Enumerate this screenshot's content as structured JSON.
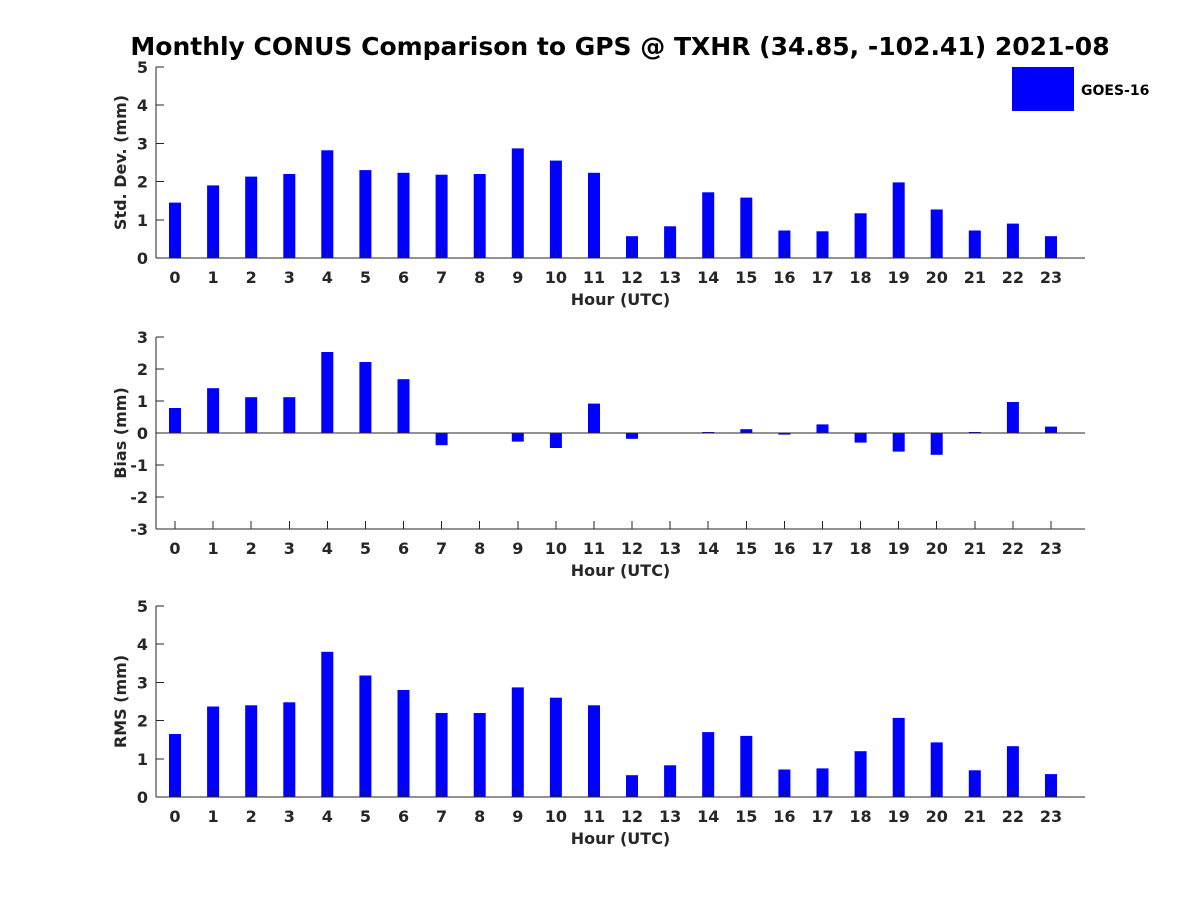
{
  "title": "Monthly CONUS Comparison to GPS @ TXHR (34.85, -102.41) 2021-08",
  "legend": {
    "label": "GOES-16",
    "color": "#0000ff"
  },
  "chart_data": [
    {
      "type": "bar",
      "xlabel": "Hour (UTC)",
      "ylabel": "Std. Dev. (mm)",
      "categories": [
        "0",
        "1",
        "2",
        "3",
        "4",
        "5",
        "6",
        "7",
        "8",
        "9",
        "10",
        "11",
        "12",
        "13",
        "14",
        "15",
        "16",
        "17",
        "18",
        "19",
        "20",
        "21",
        "22",
        "23"
      ],
      "ylim": [
        0,
        5
      ],
      "yticks": [
        "0",
        "1",
        "2",
        "3",
        "4",
        "5"
      ],
      "series": [
        {
          "name": "GOES-16",
          "values": [
            1.45,
            1.9,
            2.13,
            2.2,
            2.82,
            2.3,
            2.23,
            2.18,
            2.2,
            2.87,
            2.55,
            2.23,
            0.57,
            0.83,
            1.72,
            1.58,
            0.72,
            0.7,
            1.17,
            1.98,
            1.27,
            0.72,
            0.9,
            0.57
          ]
        }
      ]
    },
    {
      "type": "bar",
      "xlabel": "Hour (UTC)",
      "ylabel": "Bias (mm)",
      "categories": [
        "0",
        "1",
        "2",
        "3",
        "4",
        "5",
        "6",
        "7",
        "8",
        "9",
        "10",
        "11",
        "12",
        "13",
        "14",
        "15",
        "16",
        "17",
        "18",
        "19",
        "20",
        "21",
        "22",
        "23"
      ],
      "ylim": [
        -3,
        3
      ],
      "yticks": [
        "-3",
        "-2",
        "-1",
        "0",
        "1",
        "2",
        "3"
      ],
      "series": [
        {
          "name": "GOES-16",
          "values": [
            0.78,
            1.4,
            1.12,
            1.12,
            2.53,
            2.22,
            1.68,
            -0.38,
            0.0,
            -0.27,
            -0.47,
            0.92,
            -0.18,
            0.0,
            0.03,
            0.12,
            -0.05,
            0.27,
            -0.3,
            -0.58,
            -0.68,
            0.03,
            0.97,
            0.2
          ]
        }
      ]
    },
    {
      "type": "bar",
      "xlabel": "Hour (UTC)",
      "ylabel": "RMS (mm)",
      "categories": [
        "0",
        "1",
        "2",
        "3",
        "4",
        "5",
        "6",
        "7",
        "8",
        "9",
        "10",
        "11",
        "12",
        "13",
        "14",
        "15",
        "16",
        "17",
        "18",
        "19",
        "20",
        "21",
        "22",
        "23"
      ],
      "ylim": [
        0,
        5
      ],
      "yticks": [
        "0",
        "1",
        "2",
        "3",
        "4",
        "5"
      ],
      "series": [
        {
          "name": "GOES-16",
          "values": [
            1.65,
            2.37,
            2.4,
            2.48,
            3.8,
            3.18,
            2.8,
            2.2,
            2.2,
            2.87,
            2.6,
            2.4,
            0.57,
            0.83,
            1.7,
            1.6,
            0.72,
            0.75,
            1.2,
            2.07,
            1.43,
            0.7,
            1.33,
            0.6
          ]
        }
      ]
    }
  ]
}
